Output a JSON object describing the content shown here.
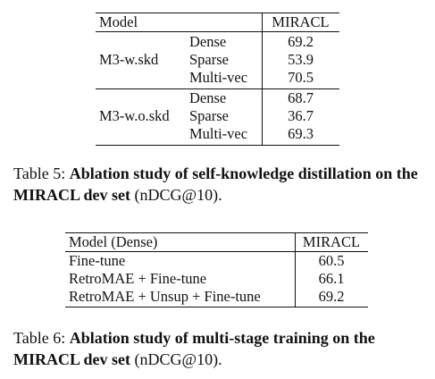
{
  "table5": {
    "header": {
      "model": "Model",
      "metric": "MIRACL"
    },
    "groups": [
      {
        "model": "M3-w.skd",
        "rows": [
          {
            "method": "Dense",
            "value": "69.2"
          },
          {
            "method": "Sparse",
            "value": "53.9"
          },
          {
            "method": "Multi-vec",
            "value": "70.5"
          }
        ]
      },
      {
        "model": "M3-w.o.skd",
        "rows": [
          {
            "method": "Dense",
            "value": "68.7"
          },
          {
            "method": "Sparse",
            "value": "36.7"
          },
          {
            "method": "Multi-vec",
            "value": "69.3"
          }
        ]
      }
    ],
    "caption": {
      "label": "Table 5: ",
      "bold": "Ablation study of self-knowledge distillation on the MIRACL dev set",
      "rest": " (nDCG@10)."
    }
  },
  "table6": {
    "header": {
      "model": "Model (Dense)",
      "metric": "MIRACL"
    },
    "rows": [
      {
        "name": "Fine-tune",
        "value": "60.5"
      },
      {
        "name": "RetroMAE + Fine-tune",
        "value": "66.1"
      },
      {
        "name": "RetroMAE + Unsup + Fine-tune",
        "value": "69.2"
      }
    ],
    "caption": {
      "label": "Table 6: ",
      "bold": "Ablation study of multi-stage training on the MIRACL dev set",
      "rest": " (nDCG@10)."
    }
  }
}
